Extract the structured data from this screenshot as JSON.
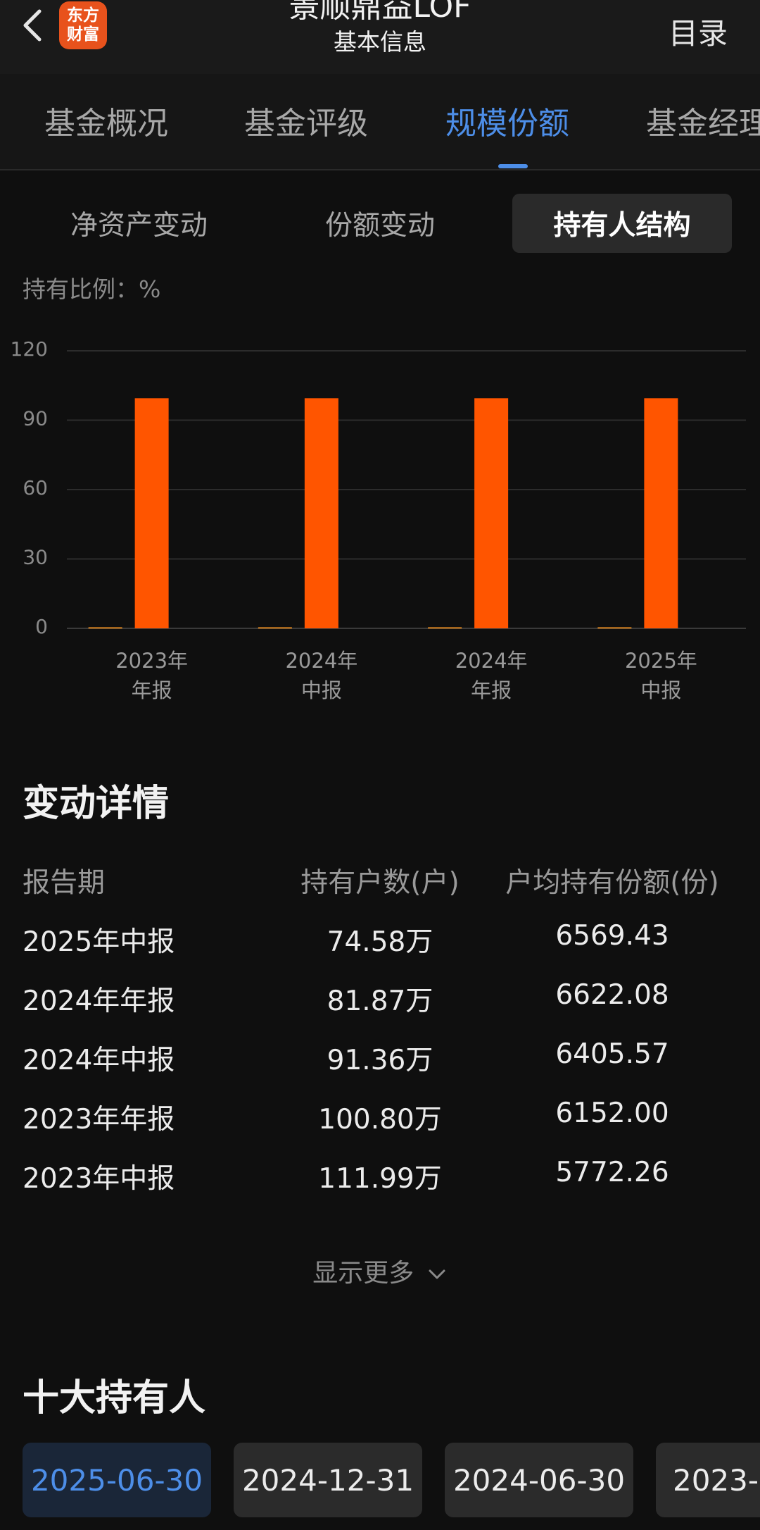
{
  "header": {
    "back_icon": "chevron-left-icon",
    "logo_line1": "东方",
    "logo_line2": "财富",
    "title": "景顺鼎益LOF",
    "subtitle": "基本信息",
    "menu_label": "目录"
  },
  "top_tabs": [
    {
      "label": "基金概况",
      "active": false
    },
    {
      "label": "基金评级",
      "active": false
    },
    {
      "label": "规模份额",
      "active": true
    },
    {
      "label": "基金经理",
      "active": false
    }
  ],
  "sub_tabs": [
    {
      "label": "净资产变动",
      "active": false
    },
    {
      "label": "份额变动",
      "active": false
    },
    {
      "label": "持有人结构",
      "active": true
    }
  ],
  "chart_unit_label": "持有比例：%",
  "colors": {
    "accent": "#4d8ee8",
    "bar": "#ff5500",
    "bar_small": "#d9821e",
    "brand": "#e8521c"
  },
  "chart_data": {
    "type": "bar",
    "categories": [
      "2023年\n年报",
      "2024年\n中报",
      "2024年\n年报",
      "2025年\n中报"
    ],
    "category_lines": [
      [
        "2023年",
        "年报"
      ],
      [
        "2024年",
        "中报"
      ],
      [
        "2024年",
        "年报"
      ],
      [
        "2025年",
        "中报"
      ]
    ],
    "series": [
      {
        "values": [
          0.5,
          0.5,
          0.5,
          0.5
        ],
        "color": "#d9821e"
      },
      {
        "values": [
          99.5,
          99.5,
          99.5,
          99.5
        ],
        "color": "#ff5500"
      }
    ],
    "ylim": [
      0,
      120
    ],
    "yticks": [
      0,
      30,
      60,
      90,
      120
    ],
    "grid": true
  },
  "details": {
    "title": "变动详情",
    "columns": [
      "报告期",
      "持有户数(户)",
      "户均持有份额(份)"
    ],
    "rows": [
      [
        "2025年中报",
        "74.58万",
        "6569.43"
      ],
      [
        "2024年年报",
        "81.87万",
        "6622.08"
      ],
      [
        "2024年中报",
        "91.36万",
        "6405.57"
      ],
      [
        "2023年年报",
        "100.80万",
        "6152.00"
      ],
      [
        "2023年中报",
        "111.99万",
        "5772.26"
      ]
    ],
    "show_more": "显示更多"
  },
  "top_holders": {
    "title": "十大持有人",
    "dates": [
      {
        "label": "2025-06-30",
        "active": true
      },
      {
        "label": "2024-12-31",
        "active": false
      },
      {
        "label": "2024-06-30",
        "active": false
      },
      {
        "label": "2023-",
        "active": false
      }
    ]
  }
}
